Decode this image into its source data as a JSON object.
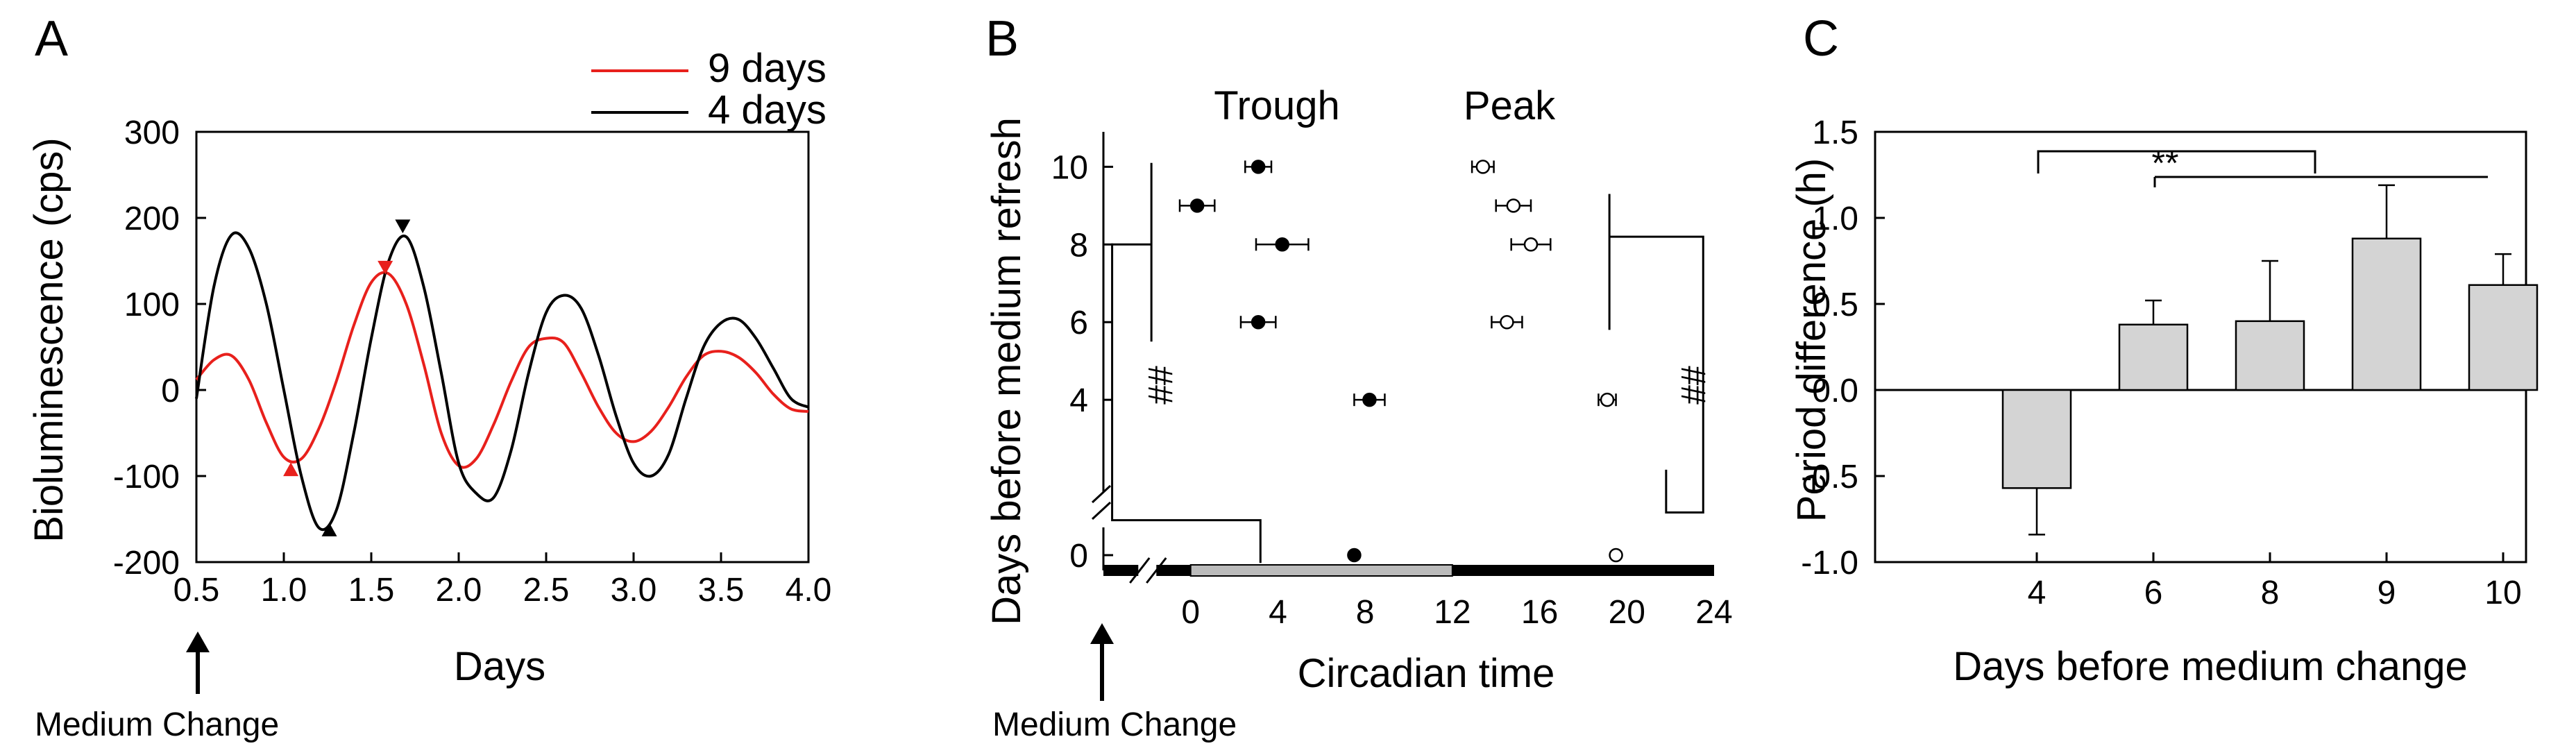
{
  "figure": {
    "medium_change_label": "Medium Change"
  },
  "chart_data": [
    {
      "panel": "A",
      "type": "line",
      "xlabel": "Days",
      "ylabel": "Bioluminescence (cps)",
      "xlim": [
        0.5,
        4.0
      ],
      "ylim": [
        -200,
        300
      ],
      "xticks": [
        "0.5",
        "1.0",
        "1.5",
        "2.0",
        "2.5",
        "3.0",
        "3.5",
        "4.0"
      ],
      "yticks": [
        "300",
        "200",
        "100",
        "0",
        "-100",
        "-200"
      ],
      "legend_position": "top-right",
      "series": [
        {
          "name": "9 days",
          "color": "#e8201c",
          "x": [
            0.5,
            0.6,
            0.7,
            0.8,
            0.9,
            1.0,
            1.1,
            1.2,
            1.3,
            1.4,
            1.5,
            1.6,
            1.7,
            1.8,
            1.9,
            2.0,
            2.1,
            2.2,
            2.3,
            2.4,
            2.5,
            2.6,
            2.7,
            2.8,
            2.9,
            3.0,
            3.1,
            3.2,
            3.3,
            3.4,
            3.5,
            3.6,
            3.7,
            3.8,
            3.9,
            4.0
          ],
          "y": [
            12,
            35,
            40,
            12,
            -38,
            -78,
            -80,
            -45,
            10,
            75,
            125,
            135,
            100,
            30,
            -50,
            -88,
            -80,
            -40,
            10,
            50,
            60,
            55,
            20,
            -20,
            -50,
            -60,
            -48,
            -20,
            15,
            40,
            45,
            38,
            20,
            -5,
            -22,
            -25
          ]
        },
        {
          "name": "4 days",
          "color": "#000000",
          "x": [
            0.5,
            0.6,
            0.7,
            0.8,
            0.9,
            1.0,
            1.1,
            1.2,
            1.3,
            1.4,
            1.5,
            1.6,
            1.7,
            1.8,
            1.9,
            2.0,
            2.1,
            2.2,
            2.3,
            2.4,
            2.5,
            2.6,
            2.7,
            2.8,
            2.9,
            3.0,
            3.1,
            3.2,
            3.3,
            3.4,
            3.5,
            3.6,
            3.7,
            3.8,
            3.9,
            4.0
          ],
          "y": [
            -10,
            120,
            180,
            165,
            100,
            0,
            -100,
            -160,
            -140,
            -50,
            60,
            150,
            178,
            120,
            20,
            -85,
            -120,
            -125,
            -70,
            20,
            90,
            110,
            95,
            40,
            -30,
            -85,
            -100,
            -75,
            -10,
            50,
            78,
            82,
            60,
            25,
            -10,
            -20
          ]
        }
      ],
      "markers": [
        {
          "x": 1.04,
          "y": -93,
          "shape": "triangle-up",
          "color": "#e8201c"
        },
        {
          "x": 1.58,
          "y": 143,
          "shape": "triangle-down",
          "color": "#e8201c"
        },
        {
          "x": 1.26,
          "y": -163,
          "shape": "triangle-up",
          "color": "#000000"
        },
        {
          "x": 1.68,
          "y": 191,
          "shape": "triangle-down",
          "color": "#000000"
        }
      ],
      "annotation_arrow_x": 0.5
    },
    {
      "panel": "B",
      "type": "scatter",
      "xlabel": "Circadian time",
      "ylabel": "Days before medium refresh",
      "xlim": [
        -4,
        24
      ],
      "ylim": [
        -0.5,
        11
      ],
      "xticks": [
        0,
        4,
        8,
        12,
        16,
        20,
        24
      ],
      "yticks": [
        0,
        4,
        6,
        8,
        10
      ],
      "axis_break": true,
      "column_labels": {
        "trough": "Trough",
        "peak": "Peak"
      },
      "bracket_symbol": "##",
      "x_bar": {
        "light_range": [
          0,
          12
        ],
        "dark_ranges": [
          [
            -4,
            0
          ],
          [
            12,
            24
          ]
        ],
        "light_color": "#bbbbbb",
        "dark_color": "#000000"
      },
      "series": [
        {
          "name": "Trough",
          "fill": "#000000",
          "x": [
            3.1,
            0.3,
            4.2,
            3.1,
            8.2,
            7.5
          ],
          "y": [
            10,
            9,
            8,
            6,
            4,
            0
          ],
          "xerr": [
            0.6,
            0.8,
            1.2,
            0.8,
            0.7,
            0
          ]
        },
        {
          "name": "Peak",
          "fill": "#ffffff",
          "x": [
            13.4,
            14.8,
            15.6,
            14.5,
            19.1,
            19.5
          ],
          "y": [
            10,
            9,
            8,
            6,
            4,
            0
          ],
          "xerr": [
            0.5,
            0.8,
            0.9,
            0.7,
            0.4,
            0
          ]
        }
      ]
    },
    {
      "panel": "C",
      "type": "bar",
      "xlabel": "Days before medium change",
      "ylabel": "Period difference (h)",
      "ylim": [
        -1.0,
        1.5
      ],
      "yticks": [
        "1.5",
        "1.0",
        "0.5",
        "0.0",
        "-0.5",
        "-1.0"
      ],
      "categories": [
        "4",
        "6",
        "8",
        "9",
        "10"
      ],
      "values": [
        -0.57,
        0.38,
        0.4,
        0.88,
        0.61
      ],
      "errors": [
        0.27,
        0.14,
        0.35,
        0.31,
        0.18
      ],
      "bar_color": "#d4d4d4",
      "significance": "**"
    }
  ]
}
